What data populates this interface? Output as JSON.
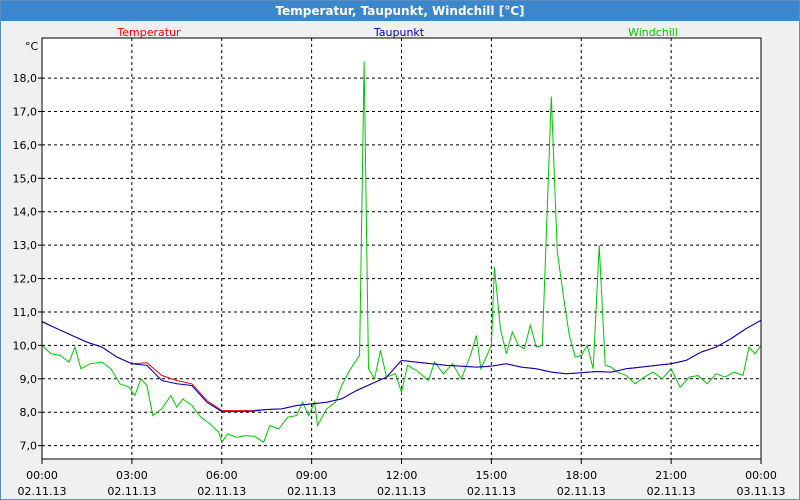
{
  "window": {
    "title": "Temperatur, Taupunkt, Windchill [°C]"
  },
  "chart_data": {
    "type": "line",
    "title": "Temperatur, Taupunkt, Windchill [°C]",
    "ylabel": "°C",
    "xlabel": "",
    "ylim": [
      6.6,
      19.2
    ],
    "xlim": [
      0,
      24
    ],
    "grid": true,
    "legend_placement": "top",
    "y_ticks": [
      "7,0",
      "8,0",
      "9,0",
      "10,0",
      "11,0",
      "12,0",
      "13,0",
      "14,0",
      "15,0",
      "16,0",
      "17,0",
      "18,0"
    ],
    "y_tick_values": [
      7,
      8,
      9,
      10,
      11,
      12,
      13,
      14,
      15,
      16,
      17,
      18
    ],
    "x_ticks": [
      {
        "x": 0,
        "time": "00:00",
        "date": "02.11.13"
      },
      {
        "x": 3,
        "time": "03:00",
        "date": "02.11.13"
      },
      {
        "x": 6,
        "time": "06:00",
        "date": "02.11.13"
      },
      {
        "x": 9,
        "time": "09:00",
        "date": "02.11.13"
      },
      {
        "x": 12,
        "time": "12:00",
        "date": "02.11.13"
      },
      {
        "x": 15,
        "time": "15:00",
        "date": "02.11.13"
      },
      {
        "x": 18,
        "time": "18:00",
        "date": "02.11.13"
      },
      {
        "x": 21,
        "time": "21:00",
        "date": "02.11.13"
      },
      {
        "x": 24,
        "time": "00:00",
        "date": "03.11.13"
      }
    ],
    "series": [
      {
        "name": "Temperatur",
        "color": "#ff0000",
        "points": [
          [
            0,
            10.7
          ],
          [
            0.5,
            10.5
          ],
          [
            1,
            10.3
          ],
          [
            1.5,
            10.1
          ],
          [
            2,
            9.95
          ],
          [
            2.5,
            9.65
          ],
          [
            3,
            9.45
          ],
          [
            3.5,
            9.48
          ],
          [
            4,
            9.1
          ],
          [
            4.5,
            8.95
          ],
          [
            5,
            8.85
          ],
          [
            5.5,
            8.35
          ],
          [
            6,
            8.05
          ],
          [
            6.5,
            8.05
          ],
          [
            7,
            8.05
          ],
          [
            7.5,
            8.08
          ],
          [
            8,
            8.1
          ],
          [
            8.5,
            8.2
          ],
          [
            9,
            8.25
          ],
          [
            9.5,
            8.3
          ],
          [
            10,
            8.4
          ],
          [
            10.5,
            8.65
          ],
          [
            11,
            8.85
          ],
          [
            11.5,
            9.05
          ],
          [
            12,
            9.55
          ],
          [
            12.5,
            9.5
          ],
          [
            13,
            9.45
          ],
          [
            13.5,
            9.4
          ],
          [
            14,
            9.38
          ],
          [
            14.5,
            9.35
          ],
          [
            15,
            9.38
          ],
          [
            15.5,
            9.45
          ],
          [
            16,
            9.35
          ],
          [
            16.5,
            9.3
          ],
          [
            17,
            9.2
          ],
          [
            17.5,
            9.15
          ],
          [
            18,
            9.18
          ],
          [
            18.5,
            9.22
          ],
          [
            19,
            9.2
          ],
          [
            19.5,
            9.3
          ],
          [
            20,
            9.35
          ],
          [
            20.5,
            9.4
          ],
          [
            21,
            9.45
          ],
          [
            21.5,
            9.55
          ],
          [
            22,
            9.8
          ],
          [
            22.5,
            9.95
          ],
          [
            23,
            10.2
          ],
          [
            23.5,
            10.5
          ],
          [
            24,
            10.75
          ]
        ]
      },
      {
        "name": "Taupunkt",
        "color": "#0000c8",
        "points": [
          [
            0,
            10.72
          ],
          [
            0.5,
            10.5
          ],
          [
            1,
            10.3
          ],
          [
            1.5,
            10.1
          ],
          [
            2,
            9.95
          ],
          [
            2.5,
            9.65
          ],
          [
            3,
            9.45
          ],
          [
            3.5,
            9.4
          ],
          [
            4,
            8.95
          ],
          [
            4.5,
            8.85
          ],
          [
            5,
            8.8
          ],
          [
            5.5,
            8.3
          ],
          [
            6,
            8.02
          ],
          [
            6.5,
            8.02
          ],
          [
            7,
            8.03
          ],
          [
            7.5,
            8.08
          ],
          [
            8,
            8.1
          ],
          [
            8.5,
            8.2
          ],
          [
            9,
            8.25
          ],
          [
            9.5,
            8.3
          ],
          [
            10,
            8.4
          ],
          [
            10.5,
            8.65
          ],
          [
            11,
            8.85
          ],
          [
            11.5,
            9.05
          ],
          [
            12,
            9.55
          ],
          [
            12.5,
            9.5
          ],
          [
            13,
            9.45
          ],
          [
            13.5,
            9.4
          ],
          [
            14,
            9.38
          ],
          [
            14.5,
            9.35
          ],
          [
            15,
            9.38
          ],
          [
            15.5,
            9.45
          ],
          [
            16,
            9.35
          ],
          [
            16.5,
            9.3
          ],
          [
            17,
            9.2
          ],
          [
            17.5,
            9.15
          ],
          [
            18,
            9.18
          ],
          [
            18.5,
            9.22
          ],
          [
            19,
            9.2
          ],
          [
            19.5,
            9.3
          ],
          [
            20,
            9.35
          ],
          [
            20.5,
            9.4
          ],
          [
            21,
            9.45
          ],
          [
            21.5,
            9.55
          ],
          [
            22,
            9.8
          ],
          [
            22.5,
            9.95
          ],
          [
            23,
            10.2
          ],
          [
            23.5,
            10.5
          ],
          [
            24,
            10.75
          ]
        ]
      },
      {
        "name": "Windchill",
        "color": "#00c800",
        "points": [
          [
            0,
            10.0
          ],
          [
            0.3,
            9.75
          ],
          [
            0.6,
            9.7
          ],
          [
            0.9,
            9.5
          ],
          [
            1.1,
            9.95
          ],
          [
            1.3,
            9.3
          ],
          [
            1.6,
            9.45
          ],
          [
            2,
            9.5
          ],
          [
            2.3,
            9.3
          ],
          [
            2.6,
            8.85
          ],
          [
            2.9,
            8.75
          ],
          [
            3.1,
            8.5
          ],
          [
            3.3,
            9.0
          ],
          [
            3.5,
            8.8
          ],
          [
            3.7,
            7.9
          ],
          [
            4.0,
            8.1
          ],
          [
            4.3,
            8.5
          ],
          [
            4.5,
            8.15
          ],
          [
            4.7,
            8.4
          ],
          [
            5.0,
            8.2
          ],
          [
            5.3,
            7.85
          ],
          [
            5.6,
            7.65
          ],
          [
            5.9,
            7.4
          ],
          [
            6.0,
            7.1
          ],
          [
            6.2,
            7.35
          ],
          [
            6.5,
            7.25
          ],
          [
            6.8,
            7.3
          ],
          [
            7.1,
            7.28
          ],
          [
            7.4,
            7.1
          ],
          [
            7.6,
            7.6
          ],
          [
            7.9,
            7.5
          ],
          [
            8.2,
            7.85
          ],
          [
            8.5,
            7.9
          ],
          [
            8.7,
            8.3
          ],
          [
            8.9,
            7.9
          ],
          [
            9.1,
            8.3
          ],
          [
            9.2,
            7.6
          ],
          [
            9.5,
            8.1
          ],
          [
            9.8,
            8.3
          ],
          [
            10.0,
            8.8
          ],
          [
            10.3,
            9.3
          ],
          [
            10.6,
            9.7
          ],
          [
            10.75,
            18.5
          ],
          [
            10.9,
            9.3
          ],
          [
            11.1,
            9.0
          ],
          [
            11.3,
            9.85
          ],
          [
            11.5,
            9.05
          ],
          [
            11.8,
            9.15
          ],
          [
            12.0,
            8.6
          ],
          [
            12.2,
            9.4
          ],
          [
            12.5,
            9.25
          ],
          [
            12.7,
            9.1
          ],
          [
            12.9,
            8.95
          ],
          [
            13.1,
            9.5
          ],
          [
            13.4,
            9.15
          ],
          [
            13.7,
            9.45
          ],
          [
            14.0,
            9.0
          ],
          [
            14.3,
            9.7
          ],
          [
            14.5,
            10.3
          ],
          [
            14.65,
            9.3
          ],
          [
            14.8,
            9.6
          ],
          [
            15.0,
            10.0
          ],
          [
            15.1,
            12.35
          ],
          [
            15.3,
            10.5
          ],
          [
            15.5,
            9.75
          ],
          [
            15.7,
            10.4
          ],
          [
            15.9,
            10.0
          ],
          [
            16.1,
            9.9
          ],
          [
            16.3,
            10.6
          ],
          [
            16.5,
            9.95
          ],
          [
            16.7,
            10.0
          ],
          [
            17.0,
            17.45
          ],
          [
            17.2,
            12.8
          ],
          [
            17.4,
            11.5
          ],
          [
            17.6,
            10.3
          ],
          [
            17.8,
            9.65
          ],
          [
            18.0,
            9.7
          ],
          [
            18.2,
            10.0
          ],
          [
            18.4,
            9.3
          ],
          [
            18.6,
            13.0
          ],
          [
            18.8,
            9.4
          ],
          [
            19.0,
            9.35
          ],
          [
            19.2,
            9.2
          ],
          [
            19.5,
            9.1
          ],
          [
            19.8,
            8.85
          ],
          [
            20.1,
            9.05
          ],
          [
            20.4,
            9.2
          ],
          [
            20.7,
            9.0
          ],
          [
            21.0,
            9.3
          ],
          [
            21.3,
            8.75
          ],
          [
            21.6,
            9.05
          ],
          [
            21.9,
            9.1
          ],
          [
            22.2,
            8.85
          ],
          [
            22.5,
            9.15
          ],
          [
            22.8,
            9.05
          ],
          [
            23.1,
            9.2
          ],
          [
            23.4,
            9.1
          ],
          [
            23.6,
            9.95
          ],
          [
            23.8,
            9.75
          ],
          [
            24.0,
            10.0
          ]
        ]
      }
    ]
  }
}
